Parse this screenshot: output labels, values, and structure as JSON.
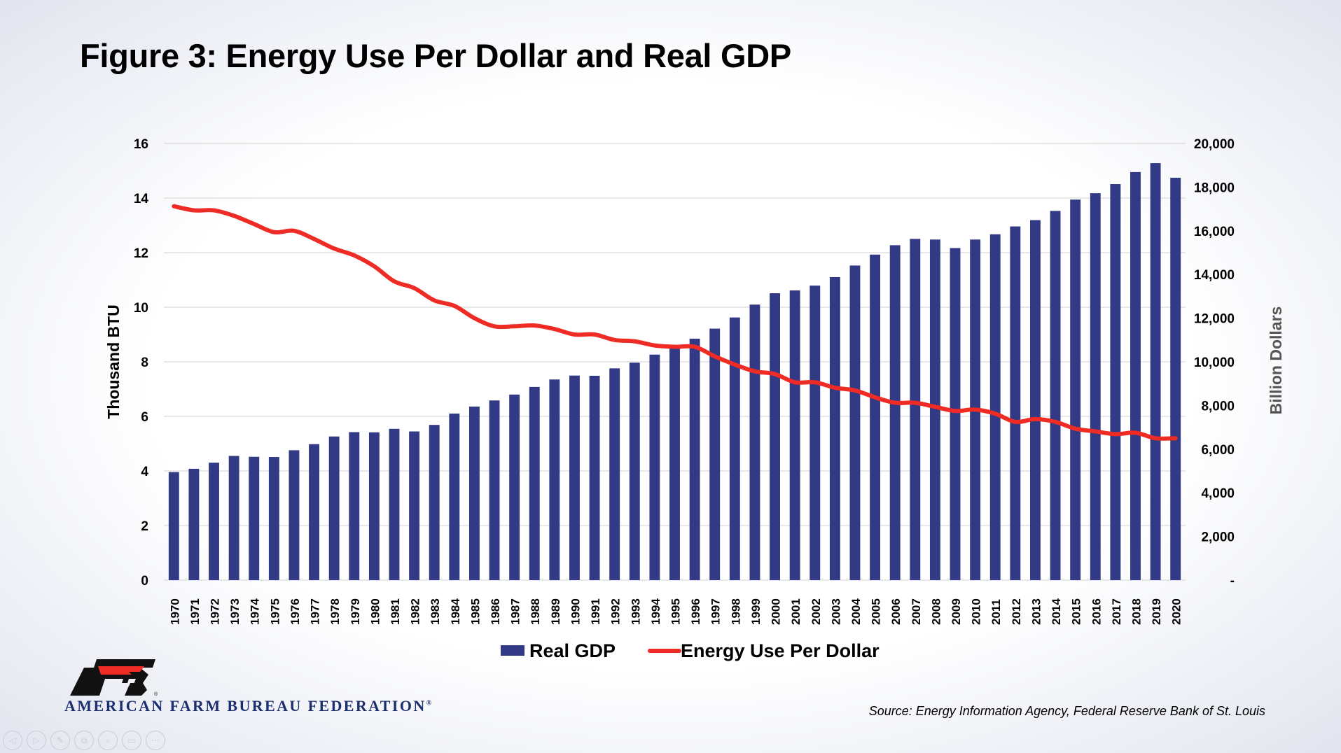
{
  "title": "Figure 3: Energy Use Per Dollar and Real GDP",
  "source": "Source: Energy Information Agency, Federal Reserve Bank of St. Louis",
  "logo": {
    "text": "AMERICAN FARM BUREAU FEDERATION",
    "mark": "®",
    "emblem": "fb-logo-icon"
  },
  "colors": {
    "bars": "#333a85",
    "line": "#ee2b24",
    "grid": "#d9d9d9",
    "logo": "#1c2f6e"
  },
  "chart_data": {
    "type": "bar",
    "categories": [
      "1970",
      "1971",
      "1972",
      "1973",
      "1974",
      "1975",
      "1976",
      "1977",
      "1978",
      "1979",
      "1980",
      "1981",
      "1982",
      "1983",
      "1984",
      "1985",
      "1986",
      "1987",
      "1988",
      "1989",
      "1990",
      "1991",
      "1992",
      "1993",
      "1994",
      "1995",
      "1996",
      "1997",
      "1998",
      "1999",
      "2000",
      "2001",
      "2002",
      "2003",
      "2004",
      "2005",
      "2006",
      "2007",
      "2008",
      "2009",
      "2010",
      "2011",
      "2012",
      "2013",
      "2014",
      "2015",
      "2016",
      "2017",
      "2018",
      "2019",
      "2020"
    ],
    "series": [
      {
        "name": "Real GDP",
        "type": "bar",
        "axis": "right",
        "values": [
          4950,
          5100,
          5380,
          5690,
          5650,
          5640,
          5950,
          6230,
          6580,
          6780,
          6770,
          6930,
          6810,
          7110,
          7630,
          7950,
          8230,
          8500,
          8850,
          9190,
          9370,
          9360,
          9700,
          9960,
          10330,
          10650,
          11060,
          11520,
          12030,
          12620,
          13140,
          13270,
          13490,
          13880,
          14410,
          14910,
          15340,
          15630,
          15600,
          15210,
          15600,
          15840,
          16200,
          16490,
          16910,
          17430,
          17720,
          18140,
          18690,
          19100,
          18430
        ]
      },
      {
        "name": "Energy Use Per Dollar",
        "type": "line",
        "axis": "left",
        "values": [
          13.7,
          13.55,
          13.55,
          13.35,
          13.05,
          12.75,
          12.8,
          12.5,
          12.15,
          11.9,
          11.5,
          10.95,
          10.7,
          10.25,
          10.05,
          9.6,
          9.3,
          9.3,
          9.33,
          9.2,
          9.0,
          9.0,
          8.8,
          8.75,
          8.6,
          8.55,
          8.55,
          8.2,
          7.9,
          7.65,
          7.55,
          7.25,
          7.25,
          7.05,
          6.95,
          6.7,
          6.5,
          6.5,
          6.35,
          6.2,
          6.25,
          6.1,
          5.8,
          5.9,
          5.8,
          5.55,
          5.45,
          5.35,
          5.4,
          5.2,
          5.2
        ]
      }
    ],
    "yleft": {
      "label": "Thousand BTU",
      "ylim": [
        0,
        16
      ],
      "ticks": [
        "0",
        "2",
        "4",
        "6",
        "8",
        "10",
        "12",
        "14",
        "16"
      ]
    },
    "yright": {
      "label": "Billion Dollars",
      "ylim": [
        0,
        20000
      ],
      "ticks": [
        "-",
        "2,000",
        "4,000",
        "6,000",
        "8,000",
        "10,000",
        "12,000",
        "14,000",
        "16,000",
        "18,000",
        "20,000"
      ]
    },
    "grid": true,
    "legend": "bottom"
  },
  "ui": {
    "slide_controls": [
      "◁",
      "▷",
      "✎",
      "⧉",
      "⌕",
      "▭",
      "···"
    ]
  }
}
